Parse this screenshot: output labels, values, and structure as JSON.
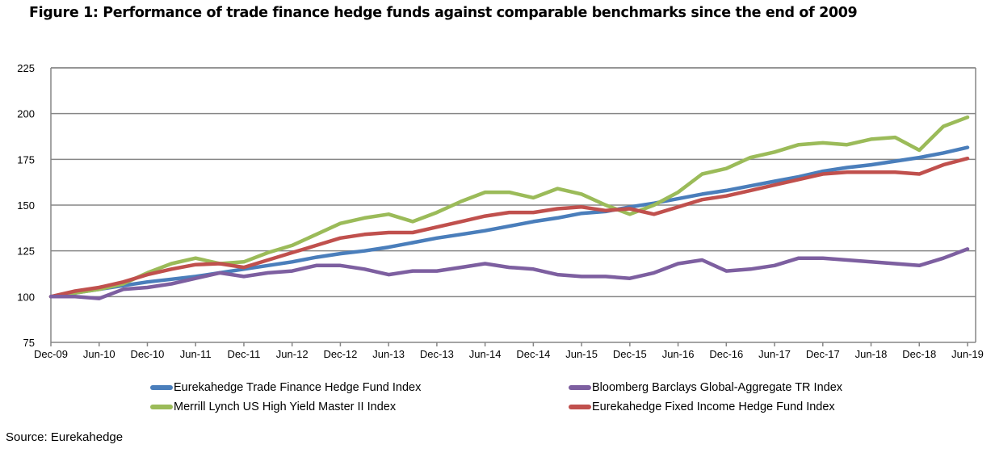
{
  "chart_data": {
    "type": "line",
    "title": "Figure 1: Performance of trade finance hedge funds against comparable benchmarks since the end of 2009",
    "xlabel": "",
    "ylabel": "",
    "ylim": [
      75,
      225
    ],
    "yticks": [
      75,
      100,
      125,
      150,
      175,
      200,
      225
    ],
    "grid": true,
    "legend_position": "bottom",
    "x_tick_labels": [
      "Dec-09",
      "Jun-10",
      "Dec-10",
      "Jun-11",
      "Dec-11",
      "Jun-12",
      "Dec-12",
      "Jun-13",
      "Dec-13",
      "Jun-14",
      "Dec-14",
      "Jun-15",
      "Dec-15",
      "Jun-16",
      "Dec-16",
      "Jun-17",
      "Dec-17",
      "Jun-18",
      "Dec-18",
      "Jun-19"
    ],
    "x": [
      "Dec-09",
      "Mar-10",
      "Jun-10",
      "Sep-10",
      "Dec-10",
      "Mar-11",
      "Jun-11",
      "Sep-11",
      "Dec-11",
      "Mar-12",
      "Jun-12",
      "Sep-12",
      "Dec-12",
      "Mar-13",
      "Jun-13",
      "Sep-13",
      "Dec-13",
      "Mar-14",
      "Jun-14",
      "Sep-14",
      "Dec-14",
      "Mar-15",
      "Jun-15",
      "Sep-15",
      "Dec-15",
      "Mar-16",
      "Jun-16",
      "Sep-16",
      "Dec-16",
      "Mar-17",
      "Jun-17",
      "Sep-17",
      "Dec-17",
      "Mar-18",
      "Jun-18",
      "Sep-18",
      "Dec-18",
      "Mar-19",
      "Jun-19"
    ],
    "series": [
      {
        "name": "Eurekahedge Trade Finance Hedge Fund Index",
        "color": "#4a7ebb",
        "values": [
          100,
          102,
          104,
          106,
          108,
          109.5,
          111,
          113,
          115,
          117,
          119,
          121.5,
          123.5,
          125,
          127,
          129.5,
          132,
          134,
          136,
          138.5,
          141,
          143,
          145.5,
          146.5,
          149,
          151,
          153.5,
          156,
          158,
          160.5,
          163,
          165.5,
          168.5,
          170.5,
          172,
          174,
          176,
          178.5,
          181.5
        ]
      },
      {
        "name": "Bloomberg Barclays Global-Aggregate TR Index",
        "color": "#7d5fa0",
        "values": [
          100,
          100,
          99,
          104,
          105,
          107,
          110,
          113,
          111,
          113,
          114,
          117,
          117,
          115,
          112,
          114,
          114,
          116,
          118,
          116,
          115,
          112,
          111,
          111,
          110,
          113,
          118,
          120,
          114,
          115,
          117,
          121,
          121,
          120,
          119,
          118,
          117,
          121,
          126
        ]
      },
      {
        "name": "Merrill Lynch US High Yield Master II Index",
        "color": "#9bbb59",
        "values": [
          100,
          102,
          104,
          107,
          113,
          118,
          121,
          118,
          119,
          124,
          128,
          134,
          140,
          143,
          145,
          141,
          146,
          152,
          157,
          157,
          154,
          159,
          156,
          150,
          145,
          150,
          157,
          167,
          170,
          176,
          179,
          183,
          184,
          183,
          186,
          187,
          180,
          193,
          198
        ]
      },
      {
        "name": "Eurekahedge Fixed Income Hedge Fund Index",
        "color": "#c0504d",
        "values": [
          100,
          103,
          105,
          108,
          112,
          115,
          117.5,
          118,
          116,
          120,
          124,
          128,
          132,
          134,
          135,
          135,
          138,
          141,
          144,
          146,
          146,
          148,
          149,
          147,
          148,
          145,
          149,
          153,
          155,
          158,
          161,
          164,
          167,
          168,
          168,
          168,
          167,
          172,
          175.5
        ]
      }
    ]
  },
  "legend": {
    "items": [
      {
        "label": "Eurekahedge Trade Finance Hedge Fund Index",
        "color": "#4a7ebb"
      },
      {
        "label": "Bloomberg Barclays Global-Aggregate TR Index",
        "color": "#7d5fa0"
      },
      {
        "label": "Merrill Lynch US High Yield Master II Index",
        "color": "#9bbb59"
      },
      {
        "label": "Eurekahedge Fixed Income Hedge Fund Index",
        "color": "#c0504d"
      }
    ]
  },
  "source": "Source: Eurekahedge",
  "colors": {
    "grid": "#868686",
    "axis": "#868686"
  }
}
